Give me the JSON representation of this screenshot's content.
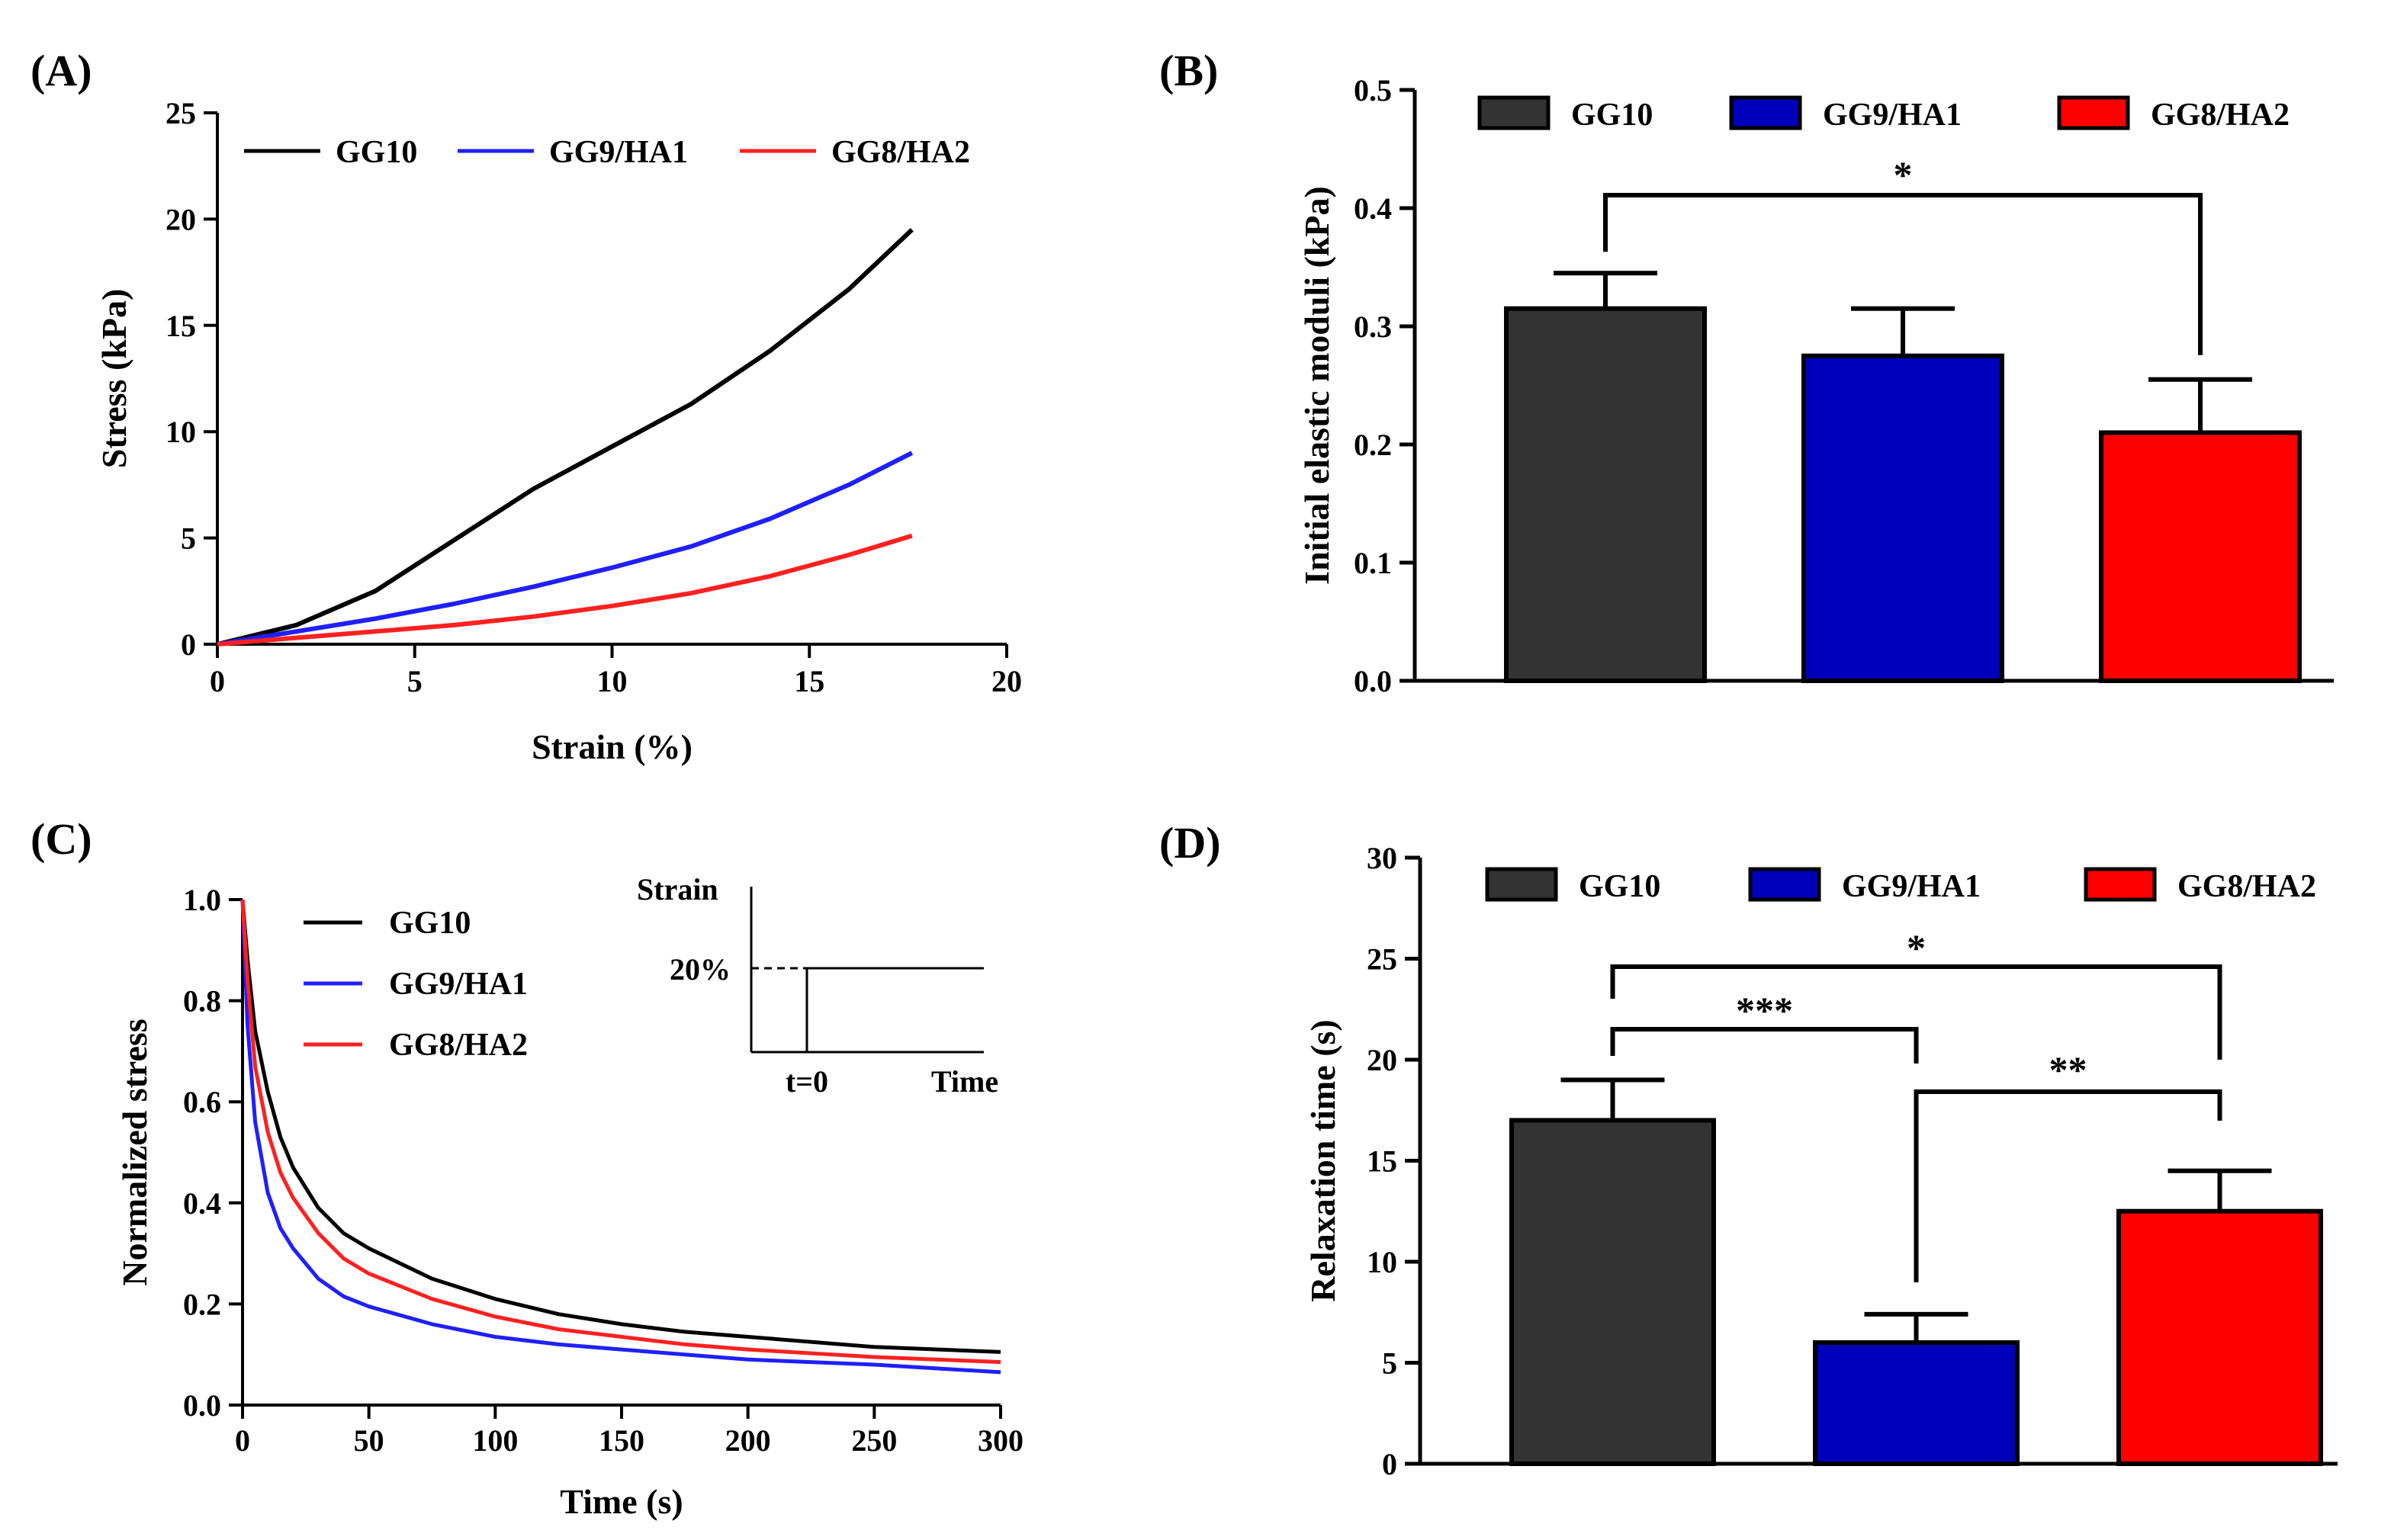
{
  "panels": {
    "A": "(A)",
    "B": "(B)",
    "C": "(C)",
    "D": "(D)"
  },
  "colors": {
    "GG10_line": "#000000",
    "GG9HA1_line": "#1f1fff",
    "GG8HA2_line": "#ff2020",
    "GG10_bar": "#333333",
    "GG9HA1_bar": "#0000bb",
    "GG8HA2_bar": "#ff0000"
  },
  "chart_data": [
    {
      "id": "A",
      "type": "line",
      "title": "",
      "xlabel": "Strain (%)",
      "ylabel": "Stress (kPa)",
      "xlim": [
        0,
        20
      ],
      "ylim": [
        0,
        25
      ],
      "xticks": [
        0,
        5,
        10,
        15,
        20
      ],
      "yticks": [
        0,
        5,
        10,
        15,
        20,
        25
      ],
      "legend_position": "top",
      "series": [
        {
          "name": "GG10",
          "x": [
            0,
            2,
            4,
            6,
            8,
            10,
            12,
            14,
            16,
            17.6
          ],
          "y": [
            0,
            0.9,
            2.5,
            4.9,
            7.3,
            9.3,
            11.3,
            13.8,
            16.7,
            19.5
          ]
        },
        {
          "name": "GG9/HA1",
          "x": [
            0,
            2,
            4,
            6,
            8,
            10,
            12,
            14,
            16,
            17.6
          ],
          "y": [
            0,
            0.6,
            1.2,
            1.9,
            2.7,
            3.6,
            4.6,
            5.9,
            7.5,
            9.0
          ]
        },
        {
          "name": "GG8/HA2",
          "x": [
            0,
            2,
            4,
            6,
            8,
            10,
            12,
            14,
            16,
            17.6
          ],
          "y": [
            0,
            0.3,
            0.6,
            0.9,
            1.3,
            1.8,
            2.4,
            3.2,
            4.2,
            5.1
          ]
        }
      ]
    },
    {
      "id": "B",
      "type": "bar",
      "title": "",
      "xlabel": "",
      "ylabel": "Initial elastic moduli  (kPa)",
      "ylim": [
        0,
        0.5
      ],
      "yticks": [
        "0.0",
        "0.1",
        "0.2",
        "0.3",
        "0.4",
        "0.5"
      ],
      "legend_position": "top",
      "categories": [
        "GG10",
        "GG9/HA1",
        "GG8/HA2"
      ],
      "values": [
        0.315,
        0.275,
        0.21
      ],
      "errors": [
        0.03,
        0.04,
        0.045
      ],
      "significance": [
        {
          "from": "GG10",
          "to": "GG8/HA2",
          "label": "*"
        }
      ]
    },
    {
      "id": "C",
      "type": "line",
      "title": "",
      "xlabel": "Time (s)",
      "ylabel": "Normalized stress",
      "xlim": [
        0,
        300
      ],
      "ylim": [
        0,
        1.0
      ],
      "xticks": [
        "0",
        "50",
        "100",
        "150",
        "200",
        "250",
        "300"
      ],
      "yticks": [
        "0.0",
        "0.2",
        "0.4",
        "0.6",
        "0.8",
        "1.0"
      ],
      "legend_position": "top-left",
      "series": [
        {
          "name": "GG10",
          "x": [
            0,
            2,
            5,
            10,
            15,
            20,
            30,
            40,
            50,
            75,
            100,
            125,
            150,
            175,
            200,
            250,
            300
          ],
          "y": [
            1.0,
            0.88,
            0.74,
            0.62,
            0.53,
            0.47,
            0.39,
            0.34,
            0.31,
            0.25,
            0.21,
            0.18,
            0.16,
            0.145,
            0.135,
            0.115,
            0.105
          ]
        },
        {
          "name": "GG9/HA1",
          "x": [
            0,
            2,
            5,
            10,
            15,
            20,
            30,
            40,
            50,
            75,
            100,
            125,
            150,
            175,
            200,
            250,
            300
          ],
          "y": [
            1.0,
            0.75,
            0.56,
            0.42,
            0.35,
            0.31,
            0.25,
            0.215,
            0.195,
            0.16,
            0.135,
            0.12,
            0.11,
            0.1,
            0.09,
            0.08,
            0.065
          ]
        },
        {
          "name": "GG8/HA2",
          "x": [
            0,
            2,
            5,
            10,
            15,
            20,
            30,
            40,
            50,
            75,
            100,
            125,
            150,
            175,
            200,
            250,
            300
          ],
          "y": [
            1.0,
            0.84,
            0.67,
            0.54,
            0.46,
            0.41,
            0.34,
            0.29,
            0.26,
            0.21,
            0.175,
            0.15,
            0.135,
            0.12,
            0.11,
            0.095,
            0.085
          ]
        }
      ],
      "inset": {
        "ylabel": "Strain",
        "level_label": "20%",
        "tick_label": "t=0",
        "xlabel": "Time"
      }
    },
    {
      "id": "D",
      "type": "bar",
      "title": "",
      "xlabel": "",
      "ylabel": "Relaxation time (s)",
      "ylim": [
        0,
        30
      ],
      "yticks": [
        "0",
        "5",
        "10",
        "15",
        "20",
        "25",
        "30"
      ],
      "legend_position": "top",
      "categories": [
        "GG10",
        "GG9/HA1",
        "GG8/HA2"
      ],
      "values": [
        17.0,
        6.0,
        12.5
      ],
      "errors": [
        2.0,
        1.4,
        2.0
      ],
      "significance": [
        {
          "from": "GG10",
          "to": "GG8/HA2",
          "label": "*"
        },
        {
          "from": "GG10",
          "to": "GG9/HA1",
          "label": "***"
        },
        {
          "from": "GG9/HA1",
          "to": "GG8/HA2",
          "label": "**"
        }
      ]
    }
  ]
}
